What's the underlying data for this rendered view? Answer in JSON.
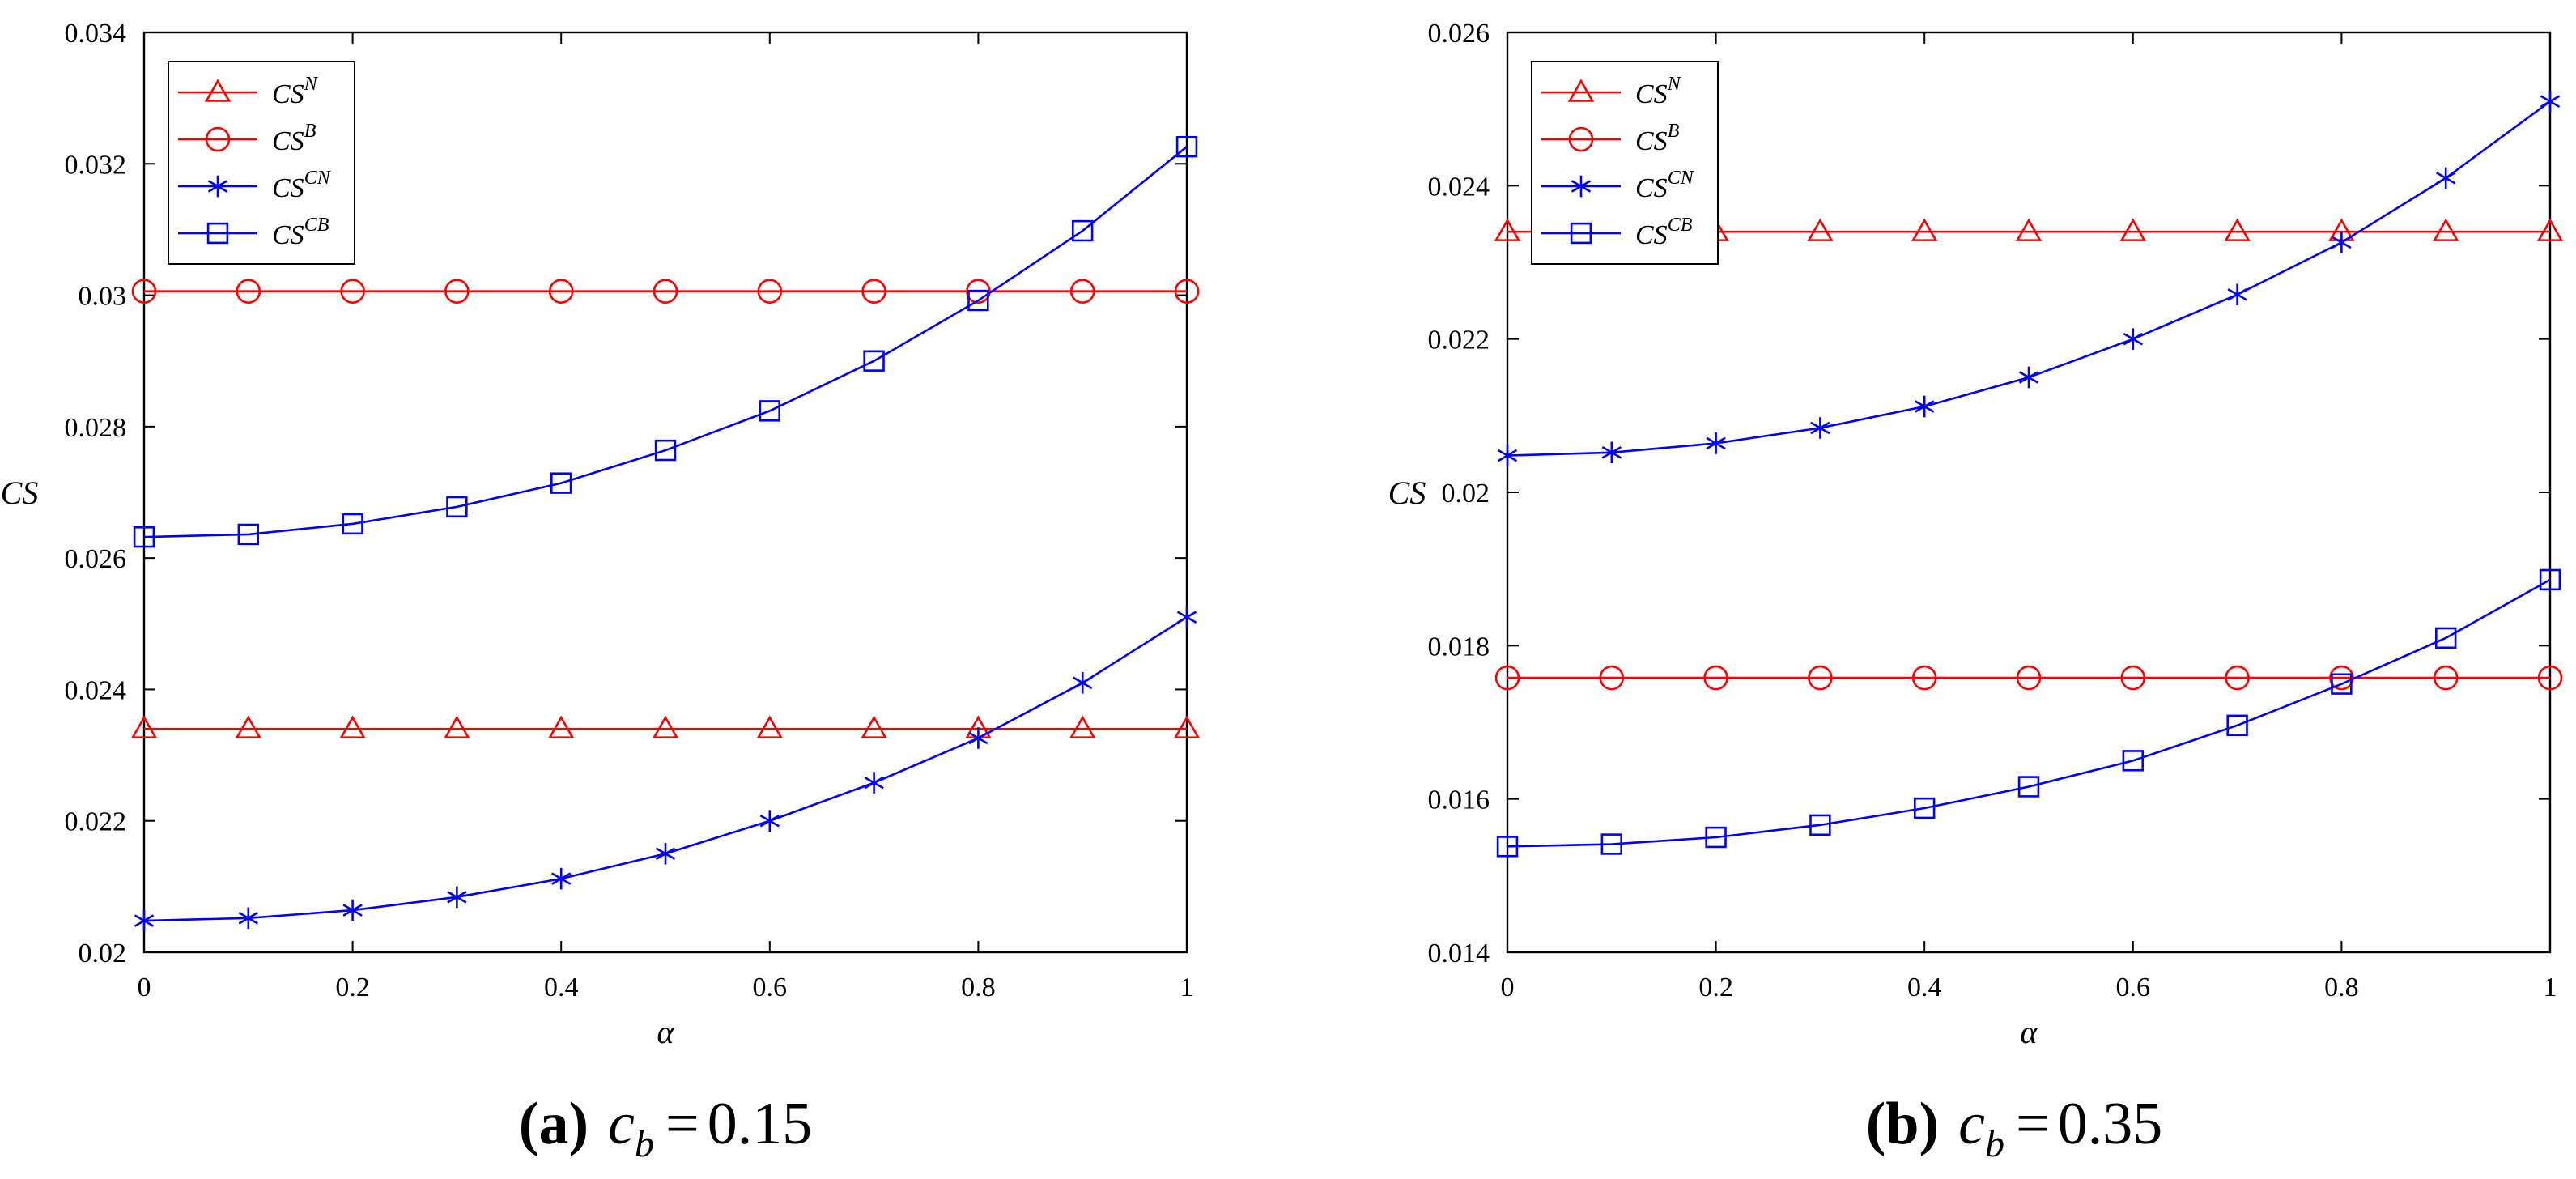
{
  "chart_data": [
    {
      "type": "line",
      "panel": "a",
      "caption": {
        "label": "(a)",
        "param": "c",
        "param_sub": "b",
        "equals": "=",
        "value": "0.15"
      },
      "xlabel": "α",
      "ylabel": "CS",
      "xlim": [
        0,
        1
      ],
      "ylim": [
        0.02,
        0.034
      ],
      "xticks": [
        0,
        0.2,
        0.4,
        0.6,
        0.8,
        1
      ],
      "xtick_labels": [
        "0",
        "0.2",
        "0.4",
        "0.6",
        "0.8",
        "1"
      ],
      "yticks": [
        0.02,
        0.022,
        0.024,
        0.026,
        0.028,
        0.03,
        0.032,
        0.034
      ],
      "ytick_labels": [
        "0.02",
        "0.022",
        "0.024",
        "0.026",
        "0.028",
        "0.03",
        "0.032",
        "0.034"
      ],
      "legend_position": "top-left",
      "x": [
        0,
        0.1,
        0.2,
        0.3,
        0.4,
        0.5,
        0.6,
        0.7,
        0.8,
        0.9,
        1.0
      ],
      "series": [
        {
          "name": "CS^N",
          "base": "CS",
          "sup": "N",
          "color": "#ff0000",
          "marker": "triangle",
          "values": [
            0.0234,
            0.0234,
            0.0234,
            0.0234,
            0.0234,
            0.0234,
            0.0234,
            0.0234,
            0.0234,
            0.0234,
            0.0234
          ]
        },
        {
          "name": "CS^B",
          "base": "CS",
          "sup": "B",
          "color": "#ff0000",
          "marker": "circle",
          "values": [
            0.03006,
            0.03006,
            0.03006,
            0.03006,
            0.03006,
            0.03006,
            0.03006,
            0.03006,
            0.03006,
            0.03006,
            0.03006
          ]
        },
        {
          "name": "CS^CN",
          "base": "CS",
          "sup": "CN",
          "color": "#0000ff",
          "marker": "star",
          "values": [
            0.02048,
            0.02052,
            0.02064,
            0.02084,
            0.02112,
            0.0215,
            0.022,
            0.02258,
            0.02326,
            0.0241,
            0.0251
          ]
        },
        {
          "name": "CS^CB",
          "base": "CS",
          "sup": "CB",
          "color": "#0000ff",
          "marker": "square",
          "values": [
            0.02632,
            0.02636,
            0.02652,
            0.02678,
            0.02714,
            0.02764,
            0.02824,
            0.029,
            0.02992,
            0.03098,
            0.03226
          ]
        }
      ]
    },
    {
      "type": "line",
      "panel": "b",
      "caption": {
        "label": "(b)",
        "param": "c",
        "param_sub": "b",
        "equals": "=",
        "value": "0.35"
      },
      "xlabel": "α",
      "ylabel": "CS",
      "xlim": [
        0,
        1
      ],
      "ylim": [
        0.014,
        0.026
      ],
      "xticks": [
        0,
        0.2,
        0.4,
        0.6,
        0.8,
        1
      ],
      "xtick_labels": [
        "0",
        "0.2",
        "0.4",
        "0.6",
        "0.8",
        "1"
      ],
      "yticks": [
        0.014,
        0.016,
        0.018,
        0.02,
        0.022,
        0.024,
        0.026
      ],
      "ytick_labels": [
        "0.014",
        "0.016",
        "0.018",
        "0.02",
        "0.022",
        "0.024",
        "0.026"
      ],
      "legend_position": "top-left",
      "x": [
        0,
        0.1,
        0.2,
        0.3,
        0.4,
        0.5,
        0.6,
        0.7,
        0.8,
        0.9,
        1.0
      ],
      "series": [
        {
          "name": "CS^N",
          "base": "CS",
          "sup": "N",
          "color": "#ff0000",
          "marker": "triangle",
          "values": [
            0.0234,
            0.0234,
            0.0234,
            0.0234,
            0.0234,
            0.0234,
            0.0234,
            0.0234,
            0.0234,
            0.0234,
            0.0234
          ]
        },
        {
          "name": "CS^B",
          "base": "CS",
          "sup": "B",
          "color": "#ff0000",
          "marker": "circle",
          "values": [
            0.01758,
            0.01758,
            0.01758,
            0.01758,
            0.01758,
            0.01758,
            0.01758,
            0.01758,
            0.01758,
            0.01758,
            0.01758
          ]
        },
        {
          "name": "CS^CN",
          "base": "CS",
          "sup": "CN",
          "color": "#0000ff",
          "marker": "star",
          "values": [
            0.02048,
            0.02052,
            0.02064,
            0.02084,
            0.02112,
            0.0215,
            0.022,
            0.02258,
            0.02326,
            0.0241,
            0.0251
          ]
        },
        {
          "name": "CS^CB",
          "base": "CS",
          "sup": "CB",
          "color": "#0000ff",
          "marker": "square",
          "values": [
            0.01538,
            0.01541,
            0.0155,
            0.01566,
            0.01588,
            0.01616,
            0.0165,
            0.01696,
            0.0175,
            0.0181,
            0.01886
          ]
        }
      ]
    }
  ]
}
